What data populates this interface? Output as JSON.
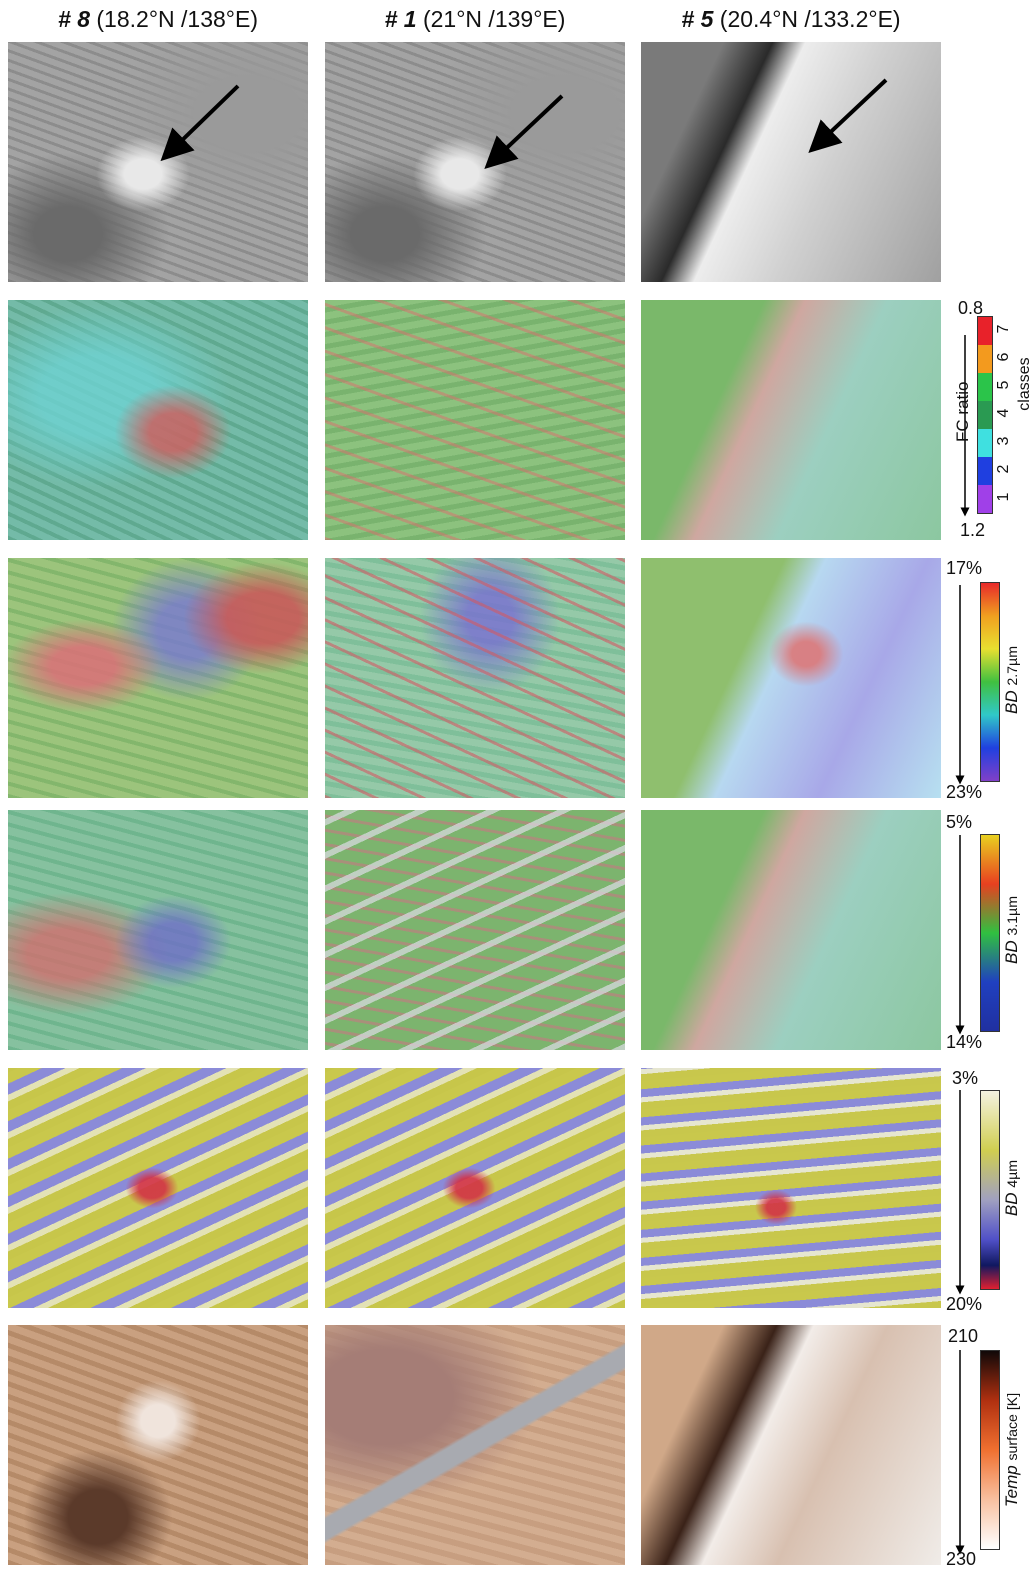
{
  "columns": [
    {
      "id": "# 8",
      "coords": "(18.2°N /138°E)"
    },
    {
      "id": "# 1",
      "coords": "(21°N /139°E)"
    },
    {
      "id": "# 5",
      "coords": "(20.4°N /133.2°E)"
    }
  ],
  "scales": [
    {
      "top": "0.8",
      "bottom": "1.2",
      "label": "FC ratio",
      "classes": [
        "1",
        "2",
        "3",
        "4",
        "5",
        "6",
        "7"
      ],
      "classes_label": "classes"
    },
    {
      "top": "17%",
      "bottom": "23%",
      "label": "BD",
      "sub": "2.7µm"
    },
    {
      "top": "5%",
      "bottom": "14%",
      "label": "BD",
      "sub": "3.1µm"
    },
    {
      "top": "3%",
      "bottom": "20%",
      "label": "BD",
      "sub": "4µm"
    },
    {
      "top": "210",
      "bottom": "230",
      "label": "Temp",
      "sub": "surface [K]"
    }
  ]
}
